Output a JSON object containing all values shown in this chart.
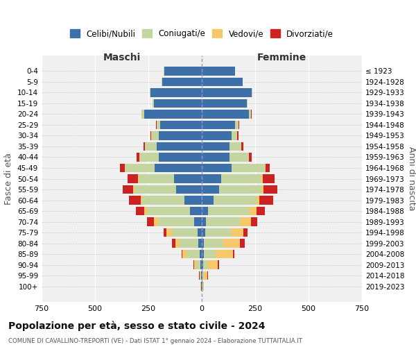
{
  "age_groups": [
    "0-4",
    "5-9",
    "10-14",
    "15-19",
    "20-24",
    "25-29",
    "30-34",
    "35-39",
    "40-44",
    "45-49",
    "50-54",
    "55-59",
    "60-64",
    "65-69",
    "70-74",
    "75-79",
    "80-84",
    "85-89",
    "90-94",
    "95-99",
    "100+"
  ],
  "birth_years": [
    "2019-2023",
    "2014-2018",
    "2009-2013",
    "2004-2008",
    "1999-2003",
    "1994-1998",
    "1989-1993",
    "1984-1988",
    "1979-1983",
    "1974-1978",
    "1969-1973",
    "1964-1968",
    "1959-1963",
    "1954-1958",
    "1949-1953",
    "1944-1948",
    "1939-1943",
    "1934-1938",
    "1929-1933",
    "1924-1928",
    "≤ 1923"
  ],
  "colors": {
    "celibe": "#3d6fa8",
    "coniugato": "#c5d5a0",
    "vedovo": "#f5c96a",
    "divorziato": "#cc2222"
  },
  "maschi": {
    "celibe": [
      175,
      185,
      240,
      225,
      270,
      195,
      200,
      210,
      200,
      220,
      130,
      120,
      80,
      55,
      35,
      20,
      15,
      10,
      5,
      3,
      2
    ],
    "coniugato": [
      2,
      2,
      3,
      5,
      10,
      15,
      35,
      55,
      90,
      140,
      165,
      195,
      200,
      200,
      170,
      120,
      90,
      60,
      20,
      5,
      2
    ],
    "vedovo": [
      0,
      0,
      0,
      0,
      1,
      1,
      1,
      1,
      2,
      2,
      3,
      5,
      5,
      15,
      20,
      25,
      20,
      20,
      10,
      3,
      1
    ],
    "divorziato": [
      0,
      0,
      0,
      0,
      1,
      2,
      5,
      8,
      12,
      20,
      50,
      50,
      55,
      40,
      30,
      15,
      15,
      5,
      3,
      2,
      0
    ]
  },
  "femmine": {
    "nubile": [
      155,
      190,
      235,
      210,
      220,
      155,
      140,
      130,
      130,
      140,
      90,
      80,
      55,
      30,
      20,
      15,
      10,
      10,
      5,
      3,
      2
    ],
    "coniugata": [
      2,
      2,
      3,
      5,
      10,
      15,
      25,
      55,
      90,
      155,
      190,
      200,
      200,
      195,
      160,
      120,
      90,
      55,
      20,
      8,
      3
    ],
    "vedova": [
      0,
      0,
      0,
      0,
      1,
      1,
      1,
      1,
      2,
      3,
      5,
      10,
      15,
      30,
      50,
      60,
      80,
      80,
      50,
      15,
      5
    ],
    "divorziata": [
      0,
      0,
      0,
      0,
      2,
      3,
      5,
      8,
      12,
      20,
      55,
      65,
      65,
      40,
      30,
      20,
      20,
      8,
      5,
      2,
      0
    ]
  },
  "xlim": 750,
  "title": "Popolazione per età, sesso e stato civile - 2024",
  "subtitle": "COMUNE DI CAVALLINO-TREPORTI (VE) - Dati ISTAT 1° gennaio 2024 - Elaborazione TUTTAITALIA.IT",
  "ylabel_left": "Fasce di età",
  "ylabel_right": "Anni di nascita",
  "xlabel_maschi": "Maschi",
  "xlabel_femmine": "Femmine",
  "legend_labels": [
    "Celibi/Nubili",
    "Coniugati/e",
    "Vedovi/e",
    "Divorziati/e"
  ],
  "background_color": "#f0f0f0"
}
